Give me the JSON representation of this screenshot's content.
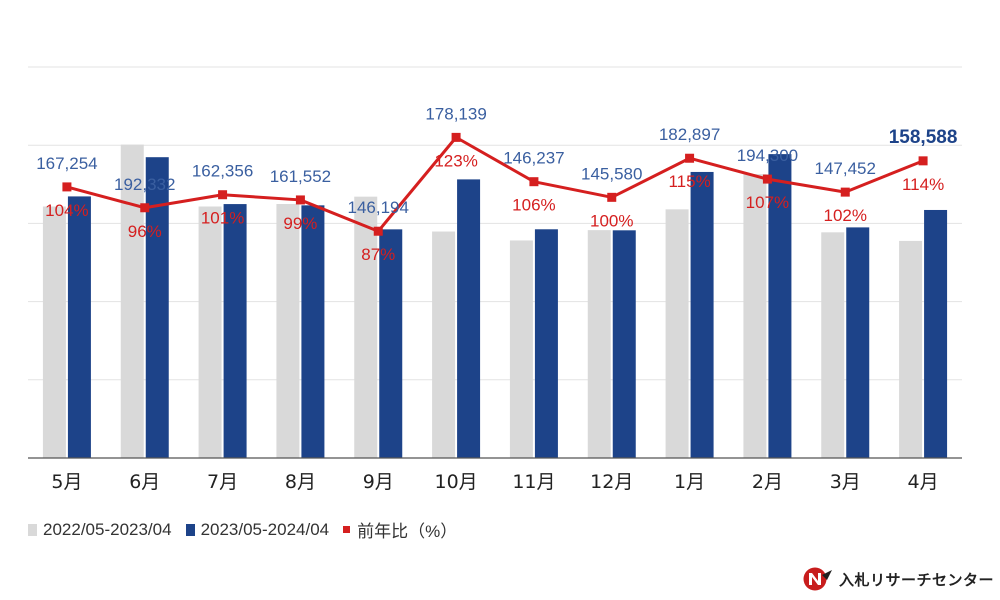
{
  "chart_data": {
    "type": "bar",
    "categories": [
      "5月",
      "6月",
      "7月",
      "8月",
      "9月",
      "10月",
      "11月",
      "12月",
      "1月",
      "2月",
      "3月",
      "4月"
    ],
    "series": [
      {
        "name": "2022/05-2023/04",
        "type": "bar",
        "color": "#d9d9d9",
        "values": [
          160800,
          200400,
          160800,
          162400,
          167100,
          144800,
          139100,
          145700,
          159000,
          181500,
          144300,
          138800
        ]
      },
      {
        "name": "2023/05-2024/04",
        "type": "bar",
        "color": "#1d4389",
        "values": [
          167254,
          192332,
          162356,
          161552,
          146194,
          178139,
          146237,
          145580,
          182897,
          194300,
          147452,
          158588
        ],
        "value_labels": [
          "167,254",
          "192,332",
          "162,356",
          "161,552",
          "146,194",
          "178,139",
          "146,237",
          "145,580",
          "182,897",
          "194,300",
          "147,452",
          "158,588"
        ]
      },
      {
        "name": "前年比（%）",
        "type": "line",
        "color": "#d51f1f",
        "values": [
          104,
          96,
          101,
          99,
          87,
          123,
          106,
          100,
          115,
          107,
          102,
          114
        ],
        "value_labels": [
          "104%",
          "96%",
          "101%",
          "99%",
          "87%",
          "123%",
          "106%",
          "100%",
          "115%",
          "107%",
          "102%",
          "114%"
        ]
      }
    ],
    "ylim": [
      0,
      250000
    ],
    "y2lim": [
      0,
      150
    ],
    "grid": true,
    "legend": "bottom-left",
    "xlabel": "",
    "ylabel": "",
    "title": ""
  },
  "brand": {
    "logo_text": "入札リサーチセンター"
  },
  "colors": {
    "prev_bar": "#d9d9d9",
    "curr_bar": "#1d4389",
    "ratio_line": "#d51f1f",
    "value_label": "#3a5fa0",
    "last_value_label": "#1d4389",
    "grid": "#e3e3e3",
    "axis": "#555555"
  }
}
